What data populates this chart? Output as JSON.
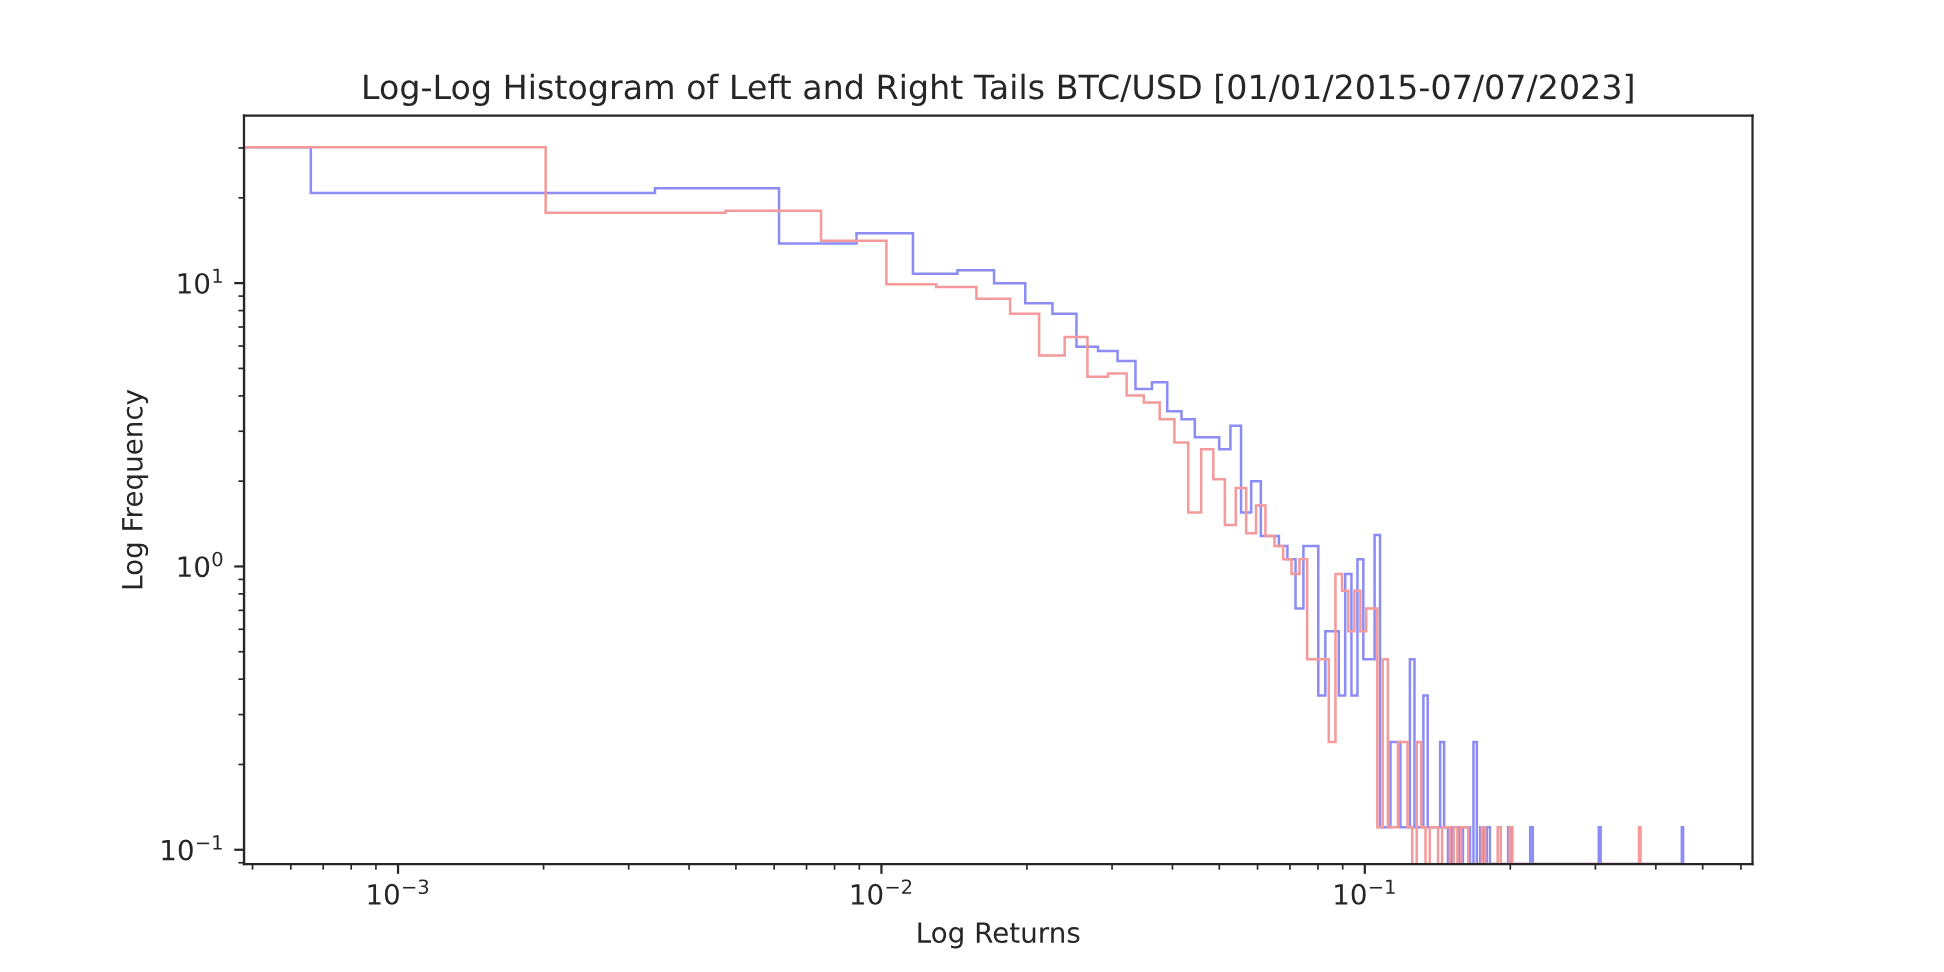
{
  "chart_data": {
    "type": "histogram",
    "title": "Log-Log Histogram of Left and Right Tails BTC/USD [01/01/2015-07/07/2023]",
    "xlabel": "Log Returns",
    "ylabel": "Log Frequency",
    "log": "xy",
    "xlim": [
      0.00048,
      0.634
    ],
    "ylim": [
      0.089,
      39
    ],
    "xticks": [
      {
        "value": 0.001,
        "label": "10$^{−3}$"
      },
      {
        "value": 0.01,
        "label": "10$^{−2}$"
      },
      {
        "value": 0.1,
        "label": "10$^{−1}$"
      }
    ],
    "yticks": [
      {
        "value": 0.1,
        "label": "10$^{−1}$"
      },
      {
        "value": 1,
        "label": "10$^{0}$"
      },
      {
        "value": 10,
        "label": "10$^{1}$"
      }
    ],
    "bins": [
      0.00048,
      0.00066,
      0.00202,
      0.0034,
      0.00476,
      0.00614,
      0.0075,
      0.00888,
      0.01024,
      0.01162,
      0.01298,
      0.01436,
      0.01572,
      0.0171,
      0.01846,
      0.01984,
      0.0212,
      0.02258,
      0.02394,
      0.02532,
      0.02668,
      0.02806,
      0.02942,
      0.0308,
      0.03216,
      0.03354,
      0.0349,
      0.03628,
      0.03764,
      0.03902,
      0.04038,
      0.04176,
      0.04312,
      0.0445,
      0.04586,
      0.04724,
      0.0486,
      0.04998,
      0.05134,
      0.05272,
      0.05408,
      0.05546,
      0.05682,
      0.0582,
      0.05956,
      0.06094,
      0.0623,
      0.06368,
      0.06504,
      0.06642,
      0.06778,
      0.06916,
      0.07052,
      0.0719,
      0.07326,
      0.07464,
      0.076,
      0.07738,
      0.07874,
      0.08012,
      0.08148,
      0.08286,
      0.08422,
      0.0856,
      0.08696,
      0.08834,
      0.0897,
      0.09108,
      0.09244,
      0.09382,
      0.09518,
      0.09656,
      0.09792,
      0.0993,
      0.10066,
      0.10204,
      0.1034,
      0.10478,
      0.10614,
      0.10752,
      0.10888,
      0.11026,
      0.11162,
      0.113,
      0.11436,
      0.11574,
      0.1171,
      0.11848,
      0.11984,
      0.12122,
      0.12258,
      0.12396,
      0.12532,
      0.1267,
      0.12806,
      0.12944,
      0.1308,
      0.13218,
      0.13354,
      0.13492,
      0.13628,
      0.13766,
      0.13902,
      0.1404,
      0.14176,
      0.14314,
      0.1445,
      0.14588,
      0.14724,
      0.14862,
      0.14998,
      0.15136,
      0.15272,
      0.1541,
      0.15546,
      0.15684,
      0.1582,
      0.15958,
      0.16094,
      0.16232,
      0.16368,
      0.16506,
      0.16642,
      0.1678,
      0.17054,
      0.17328,
      0.17464,
      0.17602,
      0.17738,
      0.17876,
      0.1815,
      0.18834,
      0.19108,
      0.19794,
      0.1993,
      0.20068,
      0.20204,
      0.21986,
      0.2226,
      0.3048,
      0.30754,
      0.36918,
      0.37192,
      0.45276,
      0.4555
    ],
    "series": [
      {
        "color": "#8c8cf5",
        "values": [
          30.2,
          20.8,
          20.8,
          21.6,
          21.6,
          13.8,
          13.8,
          15.0,
          15.0,
          10.8,
          10.8,
          11.1,
          11.1,
          10.0,
          10.0,
          8.5,
          8.5,
          7.8,
          7.8,
          5.96,
          5.96,
          5.76,
          5.76,
          5.31,
          5.31,
          4.23,
          4.23,
          4.47,
          4.47,
          3.53,
          3.53,
          3.31,
          3.31,
          2.86,
          2.86,
          2.86,
          2.86,
          2.59,
          2.59,
          3.14,
          3.14,
          1.55,
          1.55,
          2.0,
          2.0,
          1.28,
          1.28,
          1.28,
          1.28,
          1.18,
          1.18,
          1.06,
          1.06,
          0.71,
          0.71,
          1.18,
          1.18,
          1.18,
          1.18,
          0.35,
          0.35,
          0.59,
          0.59,
          0.59,
          0.59,
          0.35,
          0.35,
          0.94,
          0.94,
          0.35,
          0.35,
          1.06,
          1.06,
          0.47,
          0.47,
          0.47,
          0.47,
          1.29,
          1.29,
          0.12,
          0.12,
          0.12,
          0.12,
          0.24,
          0.24,
          0.24,
          0.24,
          0.12,
          0.12,
          0.12,
          0.12,
          0.47,
          0.47,
          0.12,
          0.12,
          0.12,
          0.12,
          0.35,
          0.35,
          0.12,
          0.12,
          0.12,
          0.12,
          0.12,
          0.12,
          0.24,
          0.24,
          0.12,
          0.12,
          null,
          null,
          0.12,
          0.12,
          0.12,
          0.12,
          null,
          null,
          0.12,
          0.12,
          0.12,
          0.12,
          null,
          null,
          0.24,
          null,
          0.12,
          0.12,
          null,
          null,
          0.12,
          null,
          null,
          null,
          0.12,
          0.12,
          null,
          null,
          0.12,
          null,
          0.12,
          null,
          null,
          null,
          0.12
        ]
      },
      {
        "color": "#f59a9a",
        "values": [
          30.2,
          30.2,
          17.7,
          17.7,
          18.0,
          18.0,
          14.1,
          14.1,
          9.9,
          9.9,
          9.7,
          9.7,
          8.8,
          8.8,
          7.8,
          7.8,
          5.55,
          5.55,
          6.46,
          6.46,
          4.67,
          4.67,
          4.8,
          4.8,
          4.01,
          4.01,
          3.79,
          3.79,
          3.31,
          3.31,
          2.74,
          2.74,
          1.55,
          1.55,
          2.59,
          2.59,
          2.03,
          2.03,
          1.4,
          1.4,
          1.89,
          1.89,
          1.31,
          1.31,
          1.64,
          1.64,
          1.28,
          1.28,
          1.18,
          1.18,
          1.06,
          1.06,
          0.94,
          0.94,
          1.06,
          1.06,
          0.47,
          0.47,
          0.47,
          0.47,
          0.47,
          0.47,
          0.24,
          0.24,
          0.94,
          0.94,
          0.82,
          0.82,
          0.59,
          0.59,
          0.82,
          0.82,
          0.59,
          0.59,
          0.71,
          0.71,
          0.71,
          0.71,
          0.12,
          0.12,
          0.47,
          0.47,
          0.12,
          0.12,
          0.12,
          0.12,
          0.24,
          0.24,
          0.24,
          0.24,
          0.12,
          0.12,
          null,
          null,
          0.24,
          0.24,
          0.12,
          0.12,
          null,
          null,
          0.12,
          0.12,
          0.12,
          0.12,
          null,
          null,
          0.12,
          0.12,
          0.12,
          0.12,
          null,
          null,
          0.12,
          0.12,
          null,
          null,
          0.12,
          0.12,
          0.12,
          0.12,
          null,
          null,
          null,
          null,
          null,
          null,
          0.12,
          0.12,
          null,
          null,
          null,
          0.12,
          null,
          null,
          0.12,
          0.12,
          null,
          null,
          null,
          null,
          null,
          0.12,
          null,
          null
        ]
      }
    ]
  }
}
